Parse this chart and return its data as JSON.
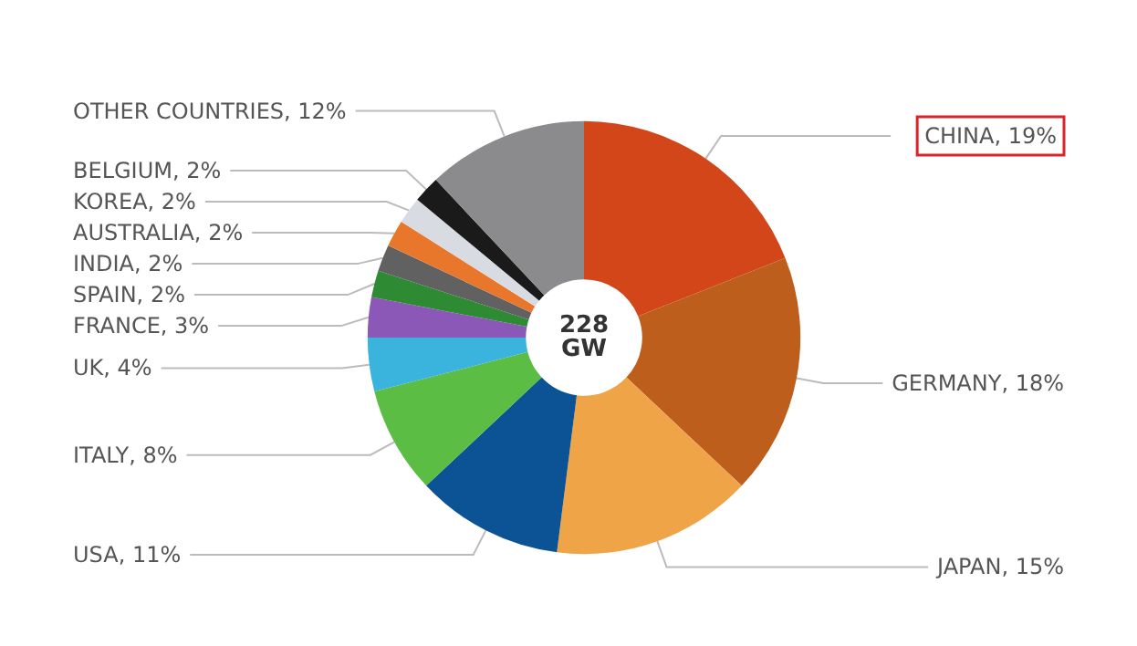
{
  "chart_data": {
    "type": "donut",
    "categories": [
      "CHINA",
      "GERMANY",
      "JAPAN",
      "USA",
      "ITALY",
      "UK",
      "FRANCE",
      "SPAIN",
      "INDIA",
      "AUSTRALIA",
      "KOREA",
      "BELGIUM",
      "OTHER COUNTRIES"
    ],
    "values": [
      19,
      18,
      15,
      11,
      8,
      4,
      3,
      2,
      2,
      2,
      2,
      2,
      12
    ],
    "value_labels": [
      "19%",
      "18%",
      "15%",
      "11%",
      "8%",
      "4%",
      "3%",
      "2%",
      "2%",
      "2%",
      "2%",
      "2%",
      "12%"
    ],
    "colors": [
      "#d2461a",
      "#bd5e1c",
      "#f0a448",
      "#0b5394",
      "#5cbd45",
      "#3ab3dd",
      "#8b58b8",
      "#2e8b34",
      "#616161",
      "#e8772b",
      "#d8dce2",
      "#1a1a1a",
      "#8b8b8d"
    ],
    "annotations": [
      "228 GW"
    ],
    "legend": false
  }
}
